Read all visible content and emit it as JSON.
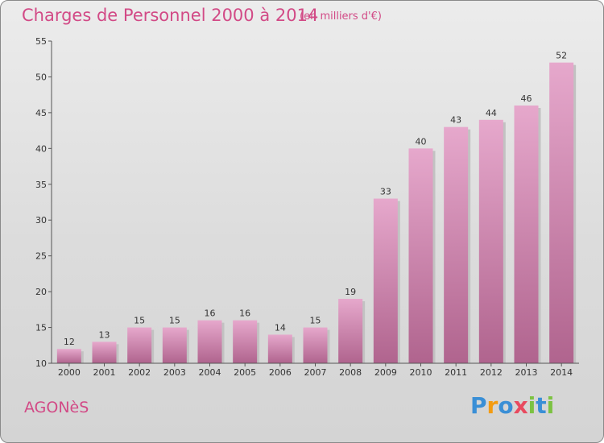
{
  "title": "Charges de Personnel 2000 à 2014",
  "subtitle": "(en milliers d'€)",
  "commune": "AGONèS",
  "logo": {
    "letters": [
      "P",
      "r",
      "o",
      "x",
      "i",
      "t",
      "i"
    ],
    "colors": [
      "#3a8fd6",
      "#f39c12",
      "#3a8fd6",
      "#e84a5f",
      "#7cc242",
      "#3a8fd6",
      "#7cc242"
    ]
  },
  "chart_data": {
    "type": "bar",
    "categories": [
      "2000",
      "2001",
      "2002",
      "2003",
      "2004",
      "2005",
      "2006",
      "2007",
      "2008",
      "2009",
      "2010",
      "2011",
      "2012",
      "2013",
      "2014"
    ],
    "values": [
      12,
      13,
      15,
      15,
      16,
      16,
      14,
      15,
      19,
      33,
      40,
      43,
      44,
      46,
      52
    ],
    "ylim": [
      10,
      55
    ],
    "yticks": [
      10,
      15,
      20,
      25,
      30,
      35,
      40,
      45,
      50,
      55
    ],
    "bar_color": "#d98cb3",
    "grid": false
  }
}
